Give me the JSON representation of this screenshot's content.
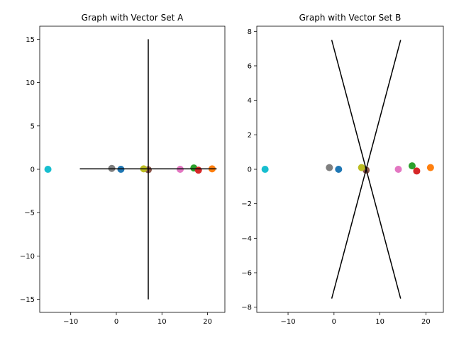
{
  "chart_data": [
    {
      "type": "scatter",
      "title": "Graph with Vector Set A",
      "xlabel": "",
      "ylabel": "",
      "xlim": [
        -16.8,
        23.8
      ],
      "ylim": [
        -16.5,
        16.5
      ],
      "xticks": [
        -10,
        0,
        10,
        20
      ],
      "yticks": [
        -15,
        -10,
        -5,
        0,
        5,
        10,
        15
      ],
      "grid": false,
      "points": [
        {
          "x": 1,
          "y": 0,
          "color": "#1f77b4"
        },
        {
          "x": 21,
          "y": 0.05,
          "color": "#ff7f0e"
        },
        {
          "x": 17,
          "y": 0.15,
          "color": "#2ca02c"
        },
        {
          "x": 18,
          "y": -0.1,
          "color": "#d62728"
        },
        {
          "x": 7,
          "y": -0.05,
          "color": "#8c564b"
        },
        {
          "x": 14,
          "y": 0,
          "color": "#e377c2"
        },
        {
          "x": -1,
          "y": 0.1,
          "color": "#7f7f7f"
        },
        {
          "x": 6,
          "y": 0.05,
          "color": "#bcbd22"
        },
        {
          "x": -15,
          "y": 0,
          "color": "#17becf"
        }
      ],
      "lines": [
        {
          "x": [
            -8,
            22
          ],
          "y": [
            0.05,
            0.05
          ],
          "color": "#000000"
        },
        {
          "x": [
            7,
            7
          ],
          "y": [
            15,
            -15
          ],
          "color": "#000000"
        }
      ]
    },
    {
      "type": "scatter",
      "title": "Graph with Vector Set B",
      "xlabel": "",
      "ylabel": "",
      "xlim": [
        -16.8,
        23.8
      ],
      "ylim": [
        -8.3,
        8.3
      ],
      "xticks": [
        -10,
        0,
        10,
        20
      ],
      "yticks": [
        -8,
        -6,
        -4,
        -2,
        0,
        2,
        4,
        6,
        8
      ],
      "grid": false,
      "points": [
        {
          "x": 1,
          "y": 0,
          "color": "#1f77b4"
        },
        {
          "x": 21,
          "y": 0.1,
          "color": "#ff7f0e"
        },
        {
          "x": 17,
          "y": 0.2,
          "color": "#2ca02c"
        },
        {
          "x": 18,
          "y": -0.1,
          "color": "#d62728"
        },
        {
          "x": 7,
          "y": -0.05,
          "color": "#8c564b"
        },
        {
          "x": 14,
          "y": 0,
          "color": "#e377c2"
        },
        {
          "x": -1,
          "y": 0.1,
          "color": "#7f7f7f"
        },
        {
          "x": 6,
          "y": 0.1,
          "color": "#bcbd22"
        },
        {
          "x": -15,
          "y": 0,
          "color": "#17becf"
        }
      ],
      "lines": [
        {
          "x": [
            -0.5,
            14.5
          ],
          "y": [
            7.5,
            -7.5
          ],
          "color": "#000000"
        },
        {
          "x": [
            -0.5,
            14.5
          ],
          "y": [
            -7.5,
            7.5
          ],
          "color": "#000000"
        }
      ]
    }
  ]
}
